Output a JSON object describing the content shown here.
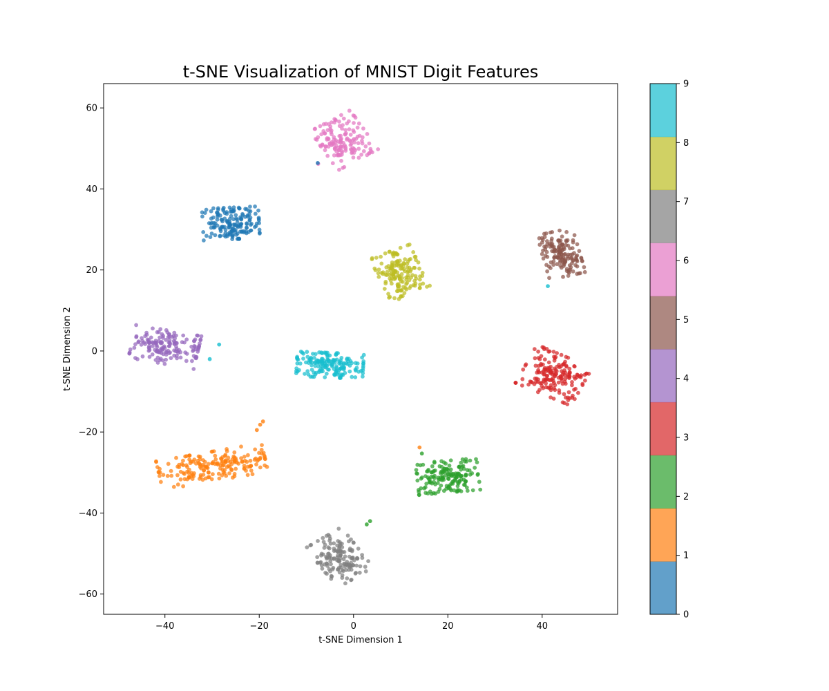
{
  "chart_data": {
    "type": "scatter",
    "title": "t-SNE Visualization of MNIST Digit Features",
    "xlabel": "t-SNE Dimension 1",
    "ylabel": "t-SNE Dimension 2",
    "xlim": [
      -53,
      56
    ],
    "ylim": [
      -65,
      66
    ],
    "xticks": [
      -40,
      -20,
      0,
      20,
      40
    ],
    "yticks": [
      -60,
      -40,
      -20,
      0,
      20,
      40,
      60
    ],
    "grid": false,
    "colormap": "tab10",
    "colorbar": {
      "min": 0,
      "max": 9,
      "ticks": [
        0,
        1,
        2,
        3,
        4,
        5,
        6,
        7,
        8,
        9
      ],
      "colors": [
        "#1f77b4",
        "#ff7f0e",
        "#2ca02c",
        "#d62728",
        "#9467bd",
        "#8c564b",
        "#e377c2",
        "#7f7f7f",
        "#bcbd22",
        "#17becf"
      ]
    },
    "clusters": [
      {
        "label": 0,
        "center": [
          -26,
          31.5
        ],
        "spread": [
          5.5,
          3.6
        ],
        "tilt": 0.05,
        "count": 170
      },
      {
        "label": 1,
        "center": [
          -30,
          -28.5
        ],
        "spread": [
          10.5,
          3.3
        ],
        "tilt": 0.2,
        "count": 190
      },
      {
        "label": 2,
        "center": [
          20,
          -31
        ],
        "spread": [
          6,
          3.6
        ],
        "tilt": 0.1,
        "count": 170
      },
      {
        "label": 3,
        "center": [
          42.5,
          -6
        ],
        "spread": [
          6,
          4.8
        ],
        "tilt": -0.45,
        "count": 180
      },
      {
        "label": 4,
        "center": [
          -40,
          1
        ],
        "spread": [
          6.5,
          3.8
        ],
        "tilt": -0.2,
        "count": 160
      },
      {
        "label": 5,
        "center": [
          44,
          24
        ],
        "spread": [
          3.6,
          5.2
        ],
        "tilt": 0.25,
        "count": 150
      },
      {
        "label": 6,
        "center": [
          -2,
          52
        ],
        "spread": [
          4.6,
          5.2
        ],
        "tilt": 0.55,
        "count": 150
      },
      {
        "label": 7,
        "center": [
          -3,
          -51
        ],
        "spread": [
          4.2,
          5.5
        ],
        "tilt": 0.6,
        "count": 150
      },
      {
        "label": 8,
        "center": [
          10,
          19
        ],
        "spread": [
          4.2,
          5.5
        ],
        "tilt": 0.4,
        "count": 160
      },
      {
        "label": 9,
        "center": [
          -5,
          -3.5
        ],
        "spread": [
          6.5,
          2.8
        ],
        "tilt": -0.05,
        "count": 170
      }
    ],
    "outliers": [
      {
        "label": 6,
        "x": -7.5,
        "y": 46.2
      },
      {
        "label": 0,
        "x": -7.6,
        "y": 46.4
      },
      {
        "label": 9,
        "x": -28.5,
        "y": 1.6
      },
      {
        "label": 9,
        "x": -30.5,
        "y": -2
      },
      {
        "label": 9,
        "x": 41.2,
        "y": 16
      },
      {
        "label": 1,
        "x": -19.8,
        "y": -18.2
      },
      {
        "label": 1,
        "x": -20.5,
        "y": -19.5
      },
      {
        "label": 1,
        "x": -19.2,
        "y": -17.4
      },
      {
        "label": 2,
        "x": 3.5,
        "y": -42
      },
      {
        "label": 2,
        "x": 2.8,
        "y": -42.8
      },
      {
        "label": 1,
        "x": 14,
        "y": -23.8
      },
      {
        "label": 2,
        "x": 14.5,
        "y": -25.3
      }
    ]
  }
}
